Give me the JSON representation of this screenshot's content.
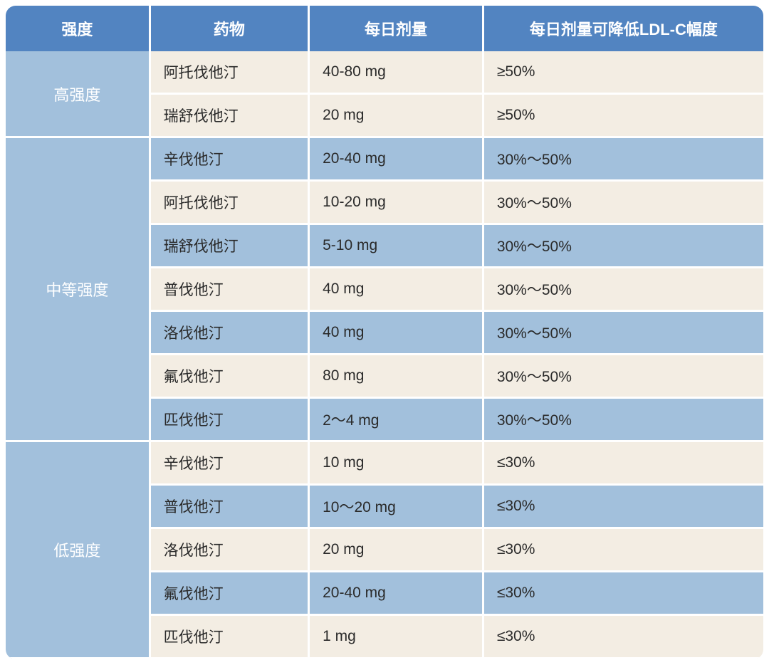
{
  "colors": {
    "header_bg": "#5284c1",
    "header_text": "#ffffff",
    "intensity_bg": "#a2c0dc",
    "intensity_text": "#ffffff",
    "row_cream": "#f3ede3",
    "row_blue": "#a2c0dc",
    "cell_text": "#2a2a2a",
    "border": "#ffffff"
  },
  "table": {
    "headers": [
      "强度",
      "药物",
      "每日剂量",
      "每日剂量可降低LDL-C幅度"
    ],
    "groups": [
      {
        "intensity": "高强度",
        "rows": [
          {
            "drug": "阿托伐他汀",
            "dose": "40-80 mg",
            "ldlc": "≥50%",
            "shade": "cream"
          },
          {
            "drug": "瑞舒伐他汀",
            "dose": "20 mg",
            "ldlc": "≥50%",
            "shade": "cream"
          }
        ]
      },
      {
        "intensity": "中等强度",
        "rows": [
          {
            "drug": "辛伐他汀",
            "dose": "20-40 mg",
            "ldlc": "30%～50%",
            "shade": "blue"
          },
          {
            "drug": "阿托伐他汀",
            "dose": "10-20 mg",
            "ldlc": "30%～50%",
            "shade": "cream"
          },
          {
            "drug": "瑞舒伐他汀",
            "dose": "5-10 mg",
            "ldlc": "30%～50%",
            "shade": "blue"
          },
          {
            "drug": "普伐他汀",
            "dose": "40 mg",
            "ldlc": "30%～50%",
            "shade": "cream"
          },
          {
            "drug": "洛伐他汀",
            "dose": "40 mg",
            "ldlc": "30%～50%",
            "shade": "blue"
          },
          {
            "drug": "氟伐他汀",
            "dose": "80 mg",
            "ldlc": "30%～50%",
            "shade": "cream"
          },
          {
            "drug": "匹伐他汀",
            "dose": "2～4 mg",
            "ldlc": "30%～50%",
            "shade": "blue"
          }
        ]
      },
      {
        "intensity": "低强度",
        "rows": [
          {
            "drug": "辛伐他汀",
            "dose": "10 mg",
            "ldlc": "≤30%",
            "shade": "cream"
          },
          {
            "drug": "普伐他汀",
            "dose": "10～20 mg",
            "ldlc": "≤30%",
            "shade": "blue"
          },
          {
            "drug": "洛伐他汀",
            "dose": "20 mg",
            "ldlc": "≤30%",
            "shade": "cream"
          },
          {
            "drug": "氟伐他汀",
            "dose": "20-40 mg",
            "ldlc": "≤30%",
            "shade": "blue"
          },
          {
            "drug": "匹伐他汀",
            "dose": "1 mg",
            "ldlc": "≤30%",
            "shade": "cream"
          }
        ]
      }
    ]
  }
}
